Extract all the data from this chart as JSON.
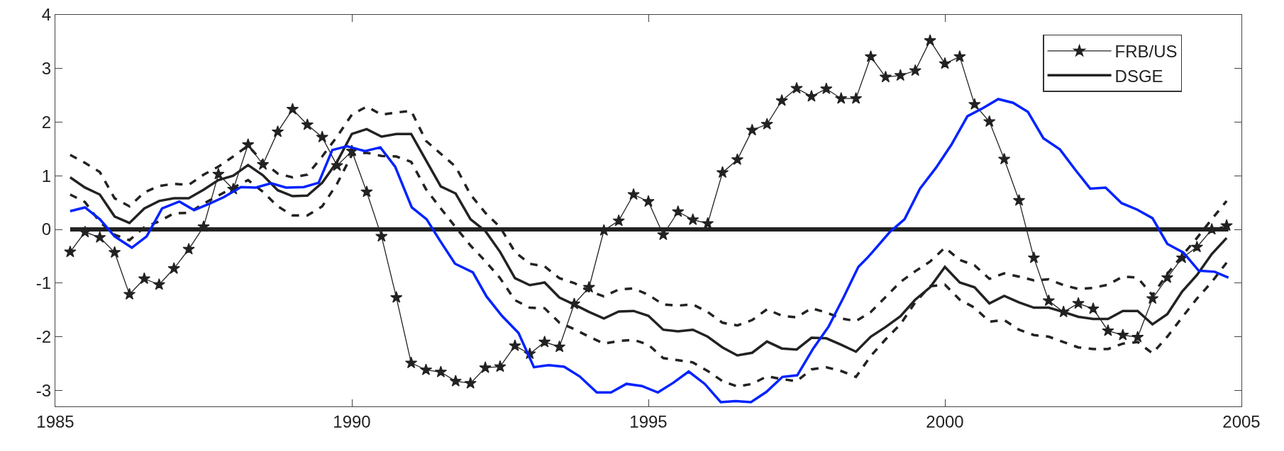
{
  "chart_data": {
    "type": "line",
    "x": [
      1985.25,
      1985.5,
      1985.75,
      1986,
      1986.25,
      1986.5,
      1986.75,
      1987,
      1987.25,
      1987.5,
      1987.75,
      1988,
      1988.25,
      1988.5,
      1988.75,
      1989,
      1989.25,
      1989.5,
      1989.75,
      1990,
      1990.25,
      1990.5,
      1990.75,
      1991,
      1991.25,
      1991.5,
      1991.75,
      1992,
      1992.25,
      1992.5,
      1992.75,
      1993,
      1993.25,
      1993.5,
      1993.75,
      1994,
      1994.25,
      1994.5,
      1994.75,
      1995,
      1995.25,
      1995.5,
      1995.75,
      1996,
      1996.25,
      1996.5,
      1996.75,
      1997,
      1997.25,
      1997.5,
      1997.75,
      1998,
      1998.25,
      1998.5,
      1998.75,
      1999,
      1999.25,
      1999.5,
      1999.75,
      2000,
      2000.25,
      2000.5,
      2000.75,
      2001,
      2001.25,
      2001.5,
      2001.75,
      2002,
      2002.25,
      2002.5,
      2002.75,
      2003,
      2003.25,
      2003.5,
      2003.75,
      2004,
      2004.25,
      2004.5,
      2004.75
    ],
    "series": [
      {
        "line_style": "dashed",
        "color": "#222222",
        "values": [
          1.39,
          1.24,
          1.07,
          0.58,
          0.43,
          0.69,
          0.81,
          0.85,
          0.83,
          1.02,
          1.17,
          1.36,
          1.56,
          1.26,
          1.04,
          0.97,
          1.02,
          1.36,
          1.73,
          2.14,
          2.29,
          2.14,
          2.18,
          2.21,
          1.65,
          1.41,
          1.17,
          0.65,
          0.31,
          0.04,
          -0.42,
          -0.64,
          -0.69,
          -0.91,
          -1.0,
          -1.15,
          -1.25,
          -1.12,
          -1.1,
          -1.22,
          -1.4,
          -1.42,
          -1.4,
          -1.54,
          -1.74,
          -1.79,
          -1.69,
          -1.49,
          -1.61,
          -1.64,
          -1.47,
          -1.55,
          -1.66,
          -1.71,
          -1.54,
          -1.26,
          -0.98,
          -0.78,
          -0.6,
          -0.34,
          -0.57,
          -0.67,
          -0.92,
          -0.82,
          -0.88,
          -0.95,
          -0.93,
          -1.04,
          -1.11,
          -1.09,
          -1.03,
          -0.88,
          -0.9,
          -1.23,
          -0.83,
          -0.49,
          -0.16,
          0.19,
          0.53
        ]
      },
      {
        "line_style": "dashed",
        "color": "#222222",
        "values": [
          0.65,
          0.51,
          0.14,
          -0.1,
          -0.2,
          0.04,
          0.15,
          0.3,
          0.31,
          0.48,
          0.63,
          0.78,
          0.92,
          0.7,
          0.43,
          0.26,
          0.26,
          0.43,
          0.85,
          1.39,
          1.43,
          1.37,
          1.36,
          1.26,
          0.75,
          0.39,
          0.04,
          -0.3,
          -0.59,
          -0.91,
          -1.32,
          -1.46,
          -1.47,
          -1.74,
          -1.86,
          -2.0,
          -2.13,
          -2.08,
          -2.06,
          -2.15,
          -2.4,
          -2.44,
          -2.48,
          -2.64,
          -2.83,
          -2.93,
          -2.88,
          -2.74,
          -2.79,
          -2.83,
          -2.61,
          -2.57,
          -2.64,
          -2.75,
          -2.36,
          -2.05,
          -1.77,
          -1.36,
          -1.06,
          -1.03,
          -1.31,
          -1.46,
          -1.72,
          -1.69,
          -1.87,
          -1.97,
          -2.0,
          -2.1,
          -2.2,
          -2.23,
          -2.23,
          -2.13,
          -2.1,
          -2.31,
          -2.0,
          -1.64,
          -1.29,
          -0.98,
          -0.62
        ]
      },
      {
        "name": "DSGE",
        "line_style": "solid",
        "color": "#222222",
        "values": [
          0.97,
          0.78,
          0.65,
          0.24,
          0.12,
          0.39,
          0.53,
          0.58,
          0.58,
          0.74,
          0.92,
          1.0,
          1.2,
          1.01,
          0.73,
          0.62,
          0.63,
          0.87,
          1.26,
          1.78,
          1.87,
          1.73,
          1.78,
          1.78,
          1.29,
          0.8,
          0.67,
          0.19,
          -0.03,
          -0.42,
          -0.91,
          -1.04,
          -0.99,
          -1.27,
          -1.4,
          -1.54,
          -1.66,
          -1.53,
          -1.52,
          -1.61,
          -1.87,
          -1.9,
          -1.87,
          -2.0,
          -2.2,
          -2.35,
          -2.3,
          -2.09,
          -2.22,
          -2.24,
          -2.02,
          -2.03,
          -2.15,
          -2.28,
          -2.0,
          -1.82,
          -1.62,
          -1.31,
          -1.08,
          -0.7,
          -0.99,
          -1.08,
          -1.38,
          -1.24,
          -1.36,
          -1.46,
          -1.46,
          -1.54,
          -1.63,
          -1.67,
          -1.67,
          -1.52,
          -1.52,
          -1.77,
          -1.58,
          -1.16,
          -0.85,
          -0.46,
          -0.16
        ]
      },
      {
        "name": "FRB/US",
        "marker": "star",
        "line_style": "solid",
        "color": "#222222",
        "values": [
          -0.42,
          -0.05,
          -0.15,
          -0.43,
          -1.21,
          -0.92,
          -1.03,
          -0.73,
          -0.37,
          0.05,
          1.03,
          0.75,
          1.58,
          1.21,
          1.82,
          2.24,
          1.95,
          1.72,
          1.19,
          1.46,
          0.7,
          -0.13,
          -1.27,
          -2.49,
          -2.62,
          -2.66,
          -2.83,
          -2.87,
          -2.58,
          -2.56,
          -2.17,
          -2.32,
          -2.1,
          -2.19,
          -1.39,
          -1.08,
          -0.02,
          0.16,
          0.65,
          0.52,
          -0.1,
          0.33,
          0.18,
          0.11,
          1.06,
          1.3,
          1.85,
          1.96,
          2.4,
          2.63,
          2.48,
          2.62,
          2.44,
          2.44,
          3.22,
          2.84,
          2.87,
          2.96,
          3.52,
          3.09,
          3.22,
          2.33,
          2.01,
          1.31,
          0.54,
          -0.53,
          -1.33,
          -1.54,
          -1.38,
          -1.48,
          -1.89,
          -1.97,
          -2.01,
          -1.29,
          -0.9,
          -0.53,
          -0.33,
          0.0,
          0.07
        ]
      },
      {
        "line_style": "solid",
        "color": "#0022ff",
        "x": [
          1985.25,
          1985.5,
          1985.75,
          1986.0,
          1986.29,
          1986.54,
          1986.8,
          1987.09,
          1987.34,
          1987.6,
          1987.84,
          1988.13,
          1988.38,
          1988.64,
          1988.89,
          1989.19,
          1989.44,
          1989.67,
          1989.92,
          1990.22,
          1990.48,
          1990.73,
          1991.01,
          1991.26,
          1991.48,
          1991.74,
          1992.04,
          1992.27,
          1992.53,
          1992.81,
          1993.07,
          1993.32,
          1993.58,
          1993.84,
          1994.13,
          1994.37,
          1994.63,
          1994.89,
          1995.16,
          1995.42,
          1995.68,
          1995.95,
          1996.22,
          1996.47,
          1996.73,
          1996.99,
          1997.26,
          1997.51,
          1997.78,
          1998.04,
          1998.29,
          1998.54,
          1998.7,
          1998.78,
          1999.07,
          1999.32,
          1999.58,
          1999.85,
          2000.11,
          2000.38,
          2000.64,
          2000.9,
          2001.15,
          2001.4,
          2001.66,
          2001.94,
          2002.2,
          2002.45,
          2002.71,
          2002.98,
          2003.24,
          2003.5,
          2003.75,
          2004.02,
          2004.28,
          2004.55,
          2004.78
        ],
        "values": [
          0.34,
          0.41,
          0.19,
          -0.13,
          -0.34,
          -0.13,
          0.39,
          0.52,
          0.36,
          0.48,
          0.6,
          0.79,
          0.78,
          0.86,
          0.78,
          0.79,
          0.87,
          1.48,
          1.55,
          1.46,
          1.53,
          1.17,
          0.41,
          0.19,
          -0.2,
          -0.64,
          -0.8,
          -1.25,
          -1.61,
          -1.93,
          -2.57,
          -2.53,
          -2.56,
          -2.74,
          -3.04,
          -3.04,
          -2.88,
          -2.92,
          -3.04,
          -2.86,
          -2.65,
          -2.88,
          -3.22,
          -3.2,
          -3.22,
          -3.03,
          -2.75,
          -2.72,
          -2.22,
          -1.81,
          -1.27,
          -0.7,
          -0.52,
          -0.42,
          -0.05,
          0.19,
          0.76,
          1.15,
          1.58,
          2.11,
          2.26,
          2.43,
          2.36,
          2.19,
          1.7,
          1.49,
          1.11,
          0.76,
          0.78,
          0.49,
          0.37,
          0.21,
          -0.27,
          -0.43,
          -0.77,
          -0.79,
          -0.9
        ]
      }
    ],
    "ref_lines": [
      {
        "axis": "y",
        "value": 0,
        "color": "#222222"
      }
    ],
    "xlim": [
      1985,
      2005
    ],
    "xticks": [
      1985,
      1990,
      1995,
      2000,
      2005
    ],
    "ylim": [
      -3.3,
      4
    ],
    "yticks": [
      -3,
      -2,
      -1,
      0,
      1,
      2,
      3,
      4
    ],
    "legend": "top right"
  }
}
